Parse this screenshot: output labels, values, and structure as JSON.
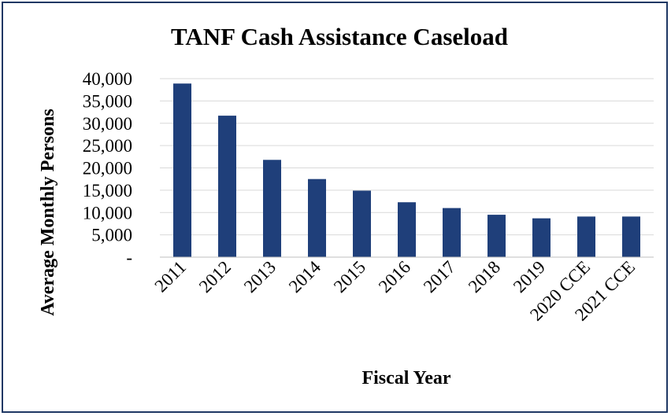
{
  "chart_data": {
    "type": "bar",
    "title": "TANF Cash Assistance Caseload",
    "xlabel": "Fiscal Year",
    "ylabel": "Average Monthly Persons",
    "categories": [
      "2011",
      "2012",
      "2013",
      "2014",
      "2015",
      "2016",
      "2017",
      "2018",
      "2019",
      "2020 CCE",
      "2021 CCE"
    ],
    "values": [
      38900,
      31700,
      21800,
      17500,
      14900,
      12300,
      11000,
      9500,
      8700,
      9100,
      9100
    ],
    "ylim": [
      0,
      40000
    ],
    "yticks": [
      0,
      5000,
      10000,
      15000,
      20000,
      25000,
      30000,
      35000,
      40000
    ],
    "ytick_labels": [
      "-",
      "5,000",
      "10,000",
      "15,000",
      "20,000",
      "25,000",
      "30,000",
      "35,000",
      "40,000"
    ],
    "grid": true,
    "legend": "none",
    "bar_color": "#1f3f7a",
    "grid_color": "#d9d9d9",
    "border_color": "#1f3864"
  }
}
